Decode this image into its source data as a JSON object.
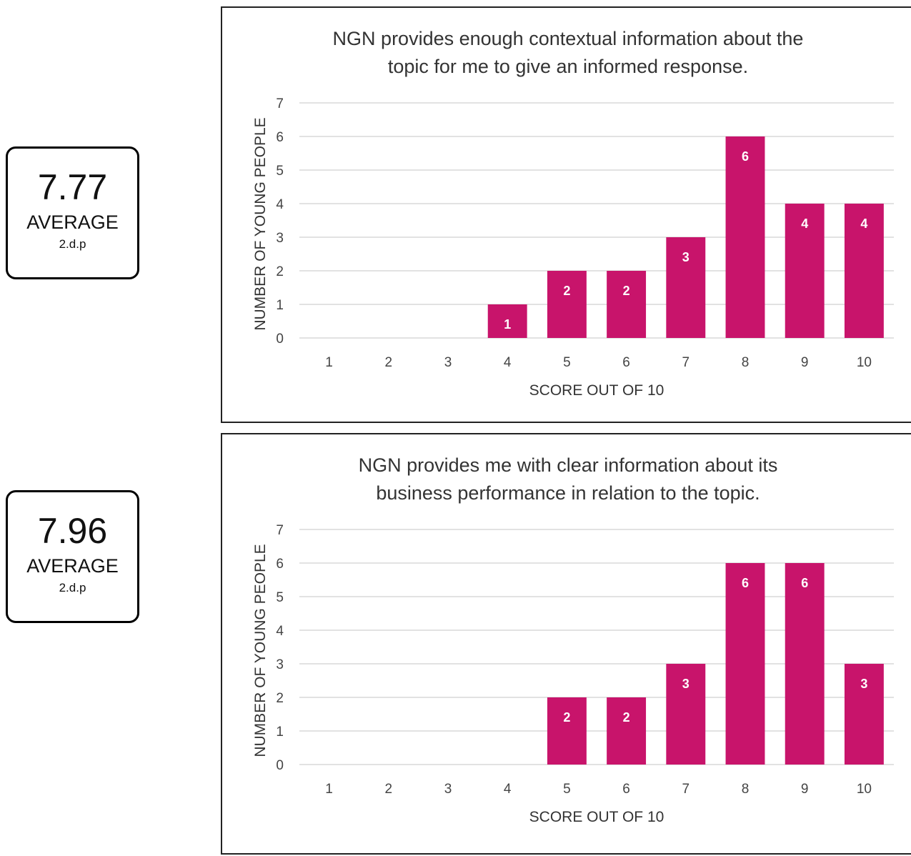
{
  "averages": [
    {
      "value": "7.77",
      "label": "AVERAGE",
      "note": "2.d.p"
    },
    {
      "value": "7.96",
      "label": "AVERAGE",
      "note": "2.d.p"
    }
  ],
  "colors": {
    "bar": "#c8146b",
    "grid": "#d9d9d9"
  },
  "chart_data": [
    {
      "type": "bar",
      "title": [
        "NGN provides enough contextual information about the",
        "topic for me to give an informed response."
      ],
      "xlabel": "SCORE OUT OF 10",
      "ylabel": "NUMBER OF YOUNG PEOPLE",
      "categories": [
        "1",
        "2",
        "3",
        "4",
        "5",
        "6",
        "7",
        "8",
        "9",
        "10"
      ],
      "values": [
        0,
        0,
        0,
        1,
        2,
        2,
        3,
        6,
        4,
        4
      ],
      "ylim": [
        0,
        7
      ],
      "yticks": [
        "0",
        "1",
        "2",
        "3",
        "4",
        "5",
        "6",
        "7"
      ],
      "grid": true
    },
    {
      "type": "bar",
      "title": [
        "NGN provides me with clear information about its",
        "business performance in relation to the topic."
      ],
      "xlabel": "SCORE OUT OF 10",
      "ylabel": "NUMBER OF YOUNG PEOPLE",
      "categories": [
        "1",
        "2",
        "3",
        "4",
        "5",
        "6",
        "7",
        "8",
        "9",
        "10"
      ],
      "values": [
        0,
        0,
        0,
        0,
        2,
        2,
        3,
        6,
        6,
        3
      ],
      "ylim": [
        0,
        7
      ],
      "yticks": [
        "0",
        "1",
        "2",
        "3",
        "4",
        "5",
        "6",
        "7"
      ],
      "grid": true
    }
  ]
}
